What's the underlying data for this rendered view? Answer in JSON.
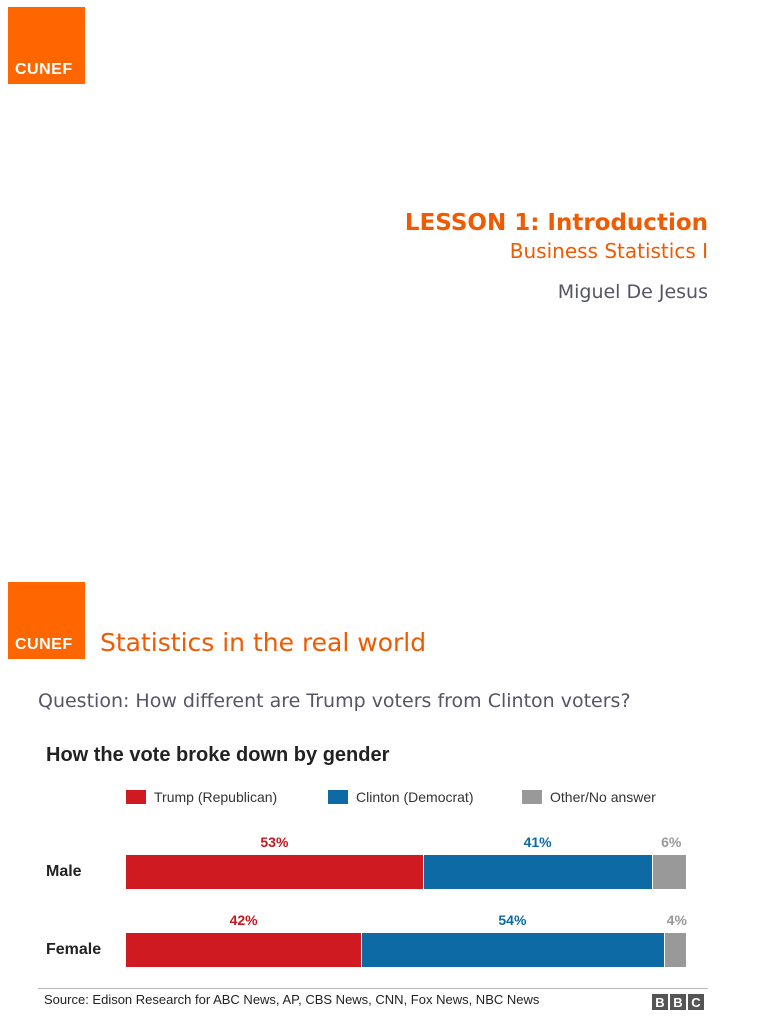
{
  "logo_text": "CUNEF",
  "slide1": {
    "title": "LESSON 1: Introduction",
    "subtitle": "Business Statistics I",
    "author": "Miguel De Jesus"
  },
  "slide2": {
    "title": "Statistics in the real world",
    "question": "Question: How different are Trump voters from Clinton voters?",
    "source": "Source: Edison Research for ABC News, AP, CBS News, CNN, Fox News, NBC News",
    "bbc_letters": [
      "B",
      "B",
      "C"
    ]
  },
  "chart_data": {
    "type": "bar",
    "orientation": "horizontal",
    "stacked": true,
    "title": "How the vote broke down by gender",
    "categories": [
      "Male",
      "Female"
    ],
    "series": [
      {
        "name": "Trump (Republican)",
        "values": [
          53,
          42
        ],
        "labels": [
          "53%",
          "42%"
        ],
        "color": "#d01a21"
      },
      {
        "name": "Clinton (Democrat)",
        "values": [
          41,
          54
        ],
        "labels": [
          "41%",
          "54%"
        ],
        "color": "#0e6aa5"
      },
      {
        "name": "Other/No answer",
        "values": [
          6,
          4
        ],
        "labels": [
          "6%",
          "4%"
        ],
        "color": "#999999"
      }
    ],
    "label_colors": [
      "#c8161e",
      "#0e6aa5",
      "#999999"
    ],
    "xlim": [
      0,
      100
    ],
    "legend": "top",
    "grid": false
  }
}
